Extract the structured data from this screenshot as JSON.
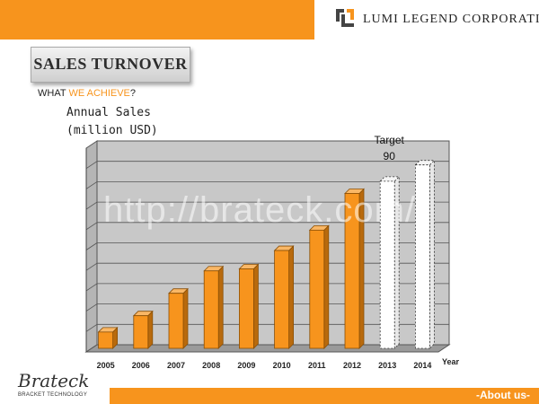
{
  "header": {
    "company": "LUMI LEGEND CORPORATION"
  },
  "section": {
    "title": "SALES TURNOVER",
    "subtitle_prefix": "WHAT ",
    "subtitle_highlight": "WE ACHIEVE",
    "subtitle_suffix": "?"
  },
  "watermark": "http://brateck.com/",
  "footer": {
    "brand": "Brateck",
    "brand_sub": "BRACKET TECHNOLOGY",
    "link": "-About us-"
  },
  "colors": {
    "accent": "#f7941d",
    "bar": "#f7941d",
    "target_bar": "#ffffff"
  },
  "chart_data": {
    "type": "bar",
    "ylabel_lines": [
      "Annual Sales",
      "(million USD)"
    ],
    "xlabel": "Year",
    "categories": [
      "2005",
      "2006",
      "2007",
      "2008",
      "2009",
      "2010",
      "2011",
      "2012",
      "2013",
      "2014"
    ],
    "values": [
      8,
      16,
      27,
      38,
      39,
      48,
      58,
      76,
      82,
      90
    ],
    "target_categories": [
      "2013",
      "2014"
    ],
    "annotation": {
      "label": "Target",
      "value_label": "90",
      "category": "2014"
    },
    "ylim": [
      0,
      100
    ],
    "grid": true
  }
}
